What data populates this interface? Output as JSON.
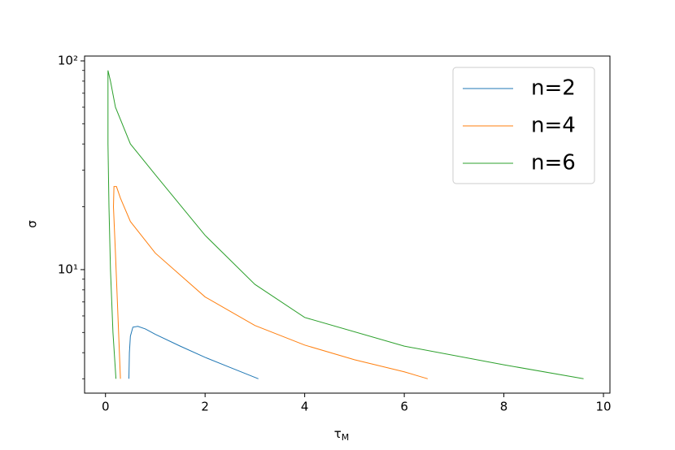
{
  "chart_data": {
    "type": "line",
    "xlabel": "τ",
    "xlabel_sub": "M",
    "ylabel": "σ",
    "xlim": [
      -0.42,
      10.13
    ],
    "xticks": [
      0,
      2,
      4,
      6,
      8,
      10
    ],
    "ylim": [
      2.56,
      105.5
    ],
    "ylog": true,
    "yticks": [
      {
        "value": 10,
        "label": "10¹"
      },
      {
        "value": 100,
        "label": "10²"
      }
    ],
    "yminorticks": [
      3,
      4,
      5,
      6,
      7,
      8,
      9,
      20,
      30,
      40,
      50,
      60,
      70,
      80,
      90
    ],
    "legend": "upper right",
    "series": [
      {
        "name": "n=2",
        "color": "#1f77b4",
        "x": [
          0.47,
          0.48,
          0.5,
          0.55,
          0.65,
          0.8,
          1.0,
          1.5,
          2.0,
          2.5,
          3.07
        ],
        "values": [
          3.0,
          4.0,
          4.8,
          5.3,
          5.35,
          5.2,
          4.9,
          4.3,
          3.8,
          3.4,
          3.0
        ]
      },
      {
        "name": "n=4",
        "color": "#ff7f0e",
        "x": [
          0.3,
          0.25,
          0.2,
          0.16,
          0.17,
          0.22,
          0.3,
          0.5,
          1.0,
          2.0,
          3.0,
          4.0,
          5.0,
          6.0,
          6.47
        ],
        "values": [
          3.0,
          6.0,
          12.0,
          20.0,
          25.0,
          25.0,
          22.0,
          17.0,
          12.0,
          7.4,
          5.4,
          4.35,
          3.7,
          3.24,
          3.0
        ]
      },
      {
        "name": "n=6",
        "color": "#2ca02c",
        "x": [
          0.21,
          0.15,
          0.1,
          0.07,
          0.05,
          0.05,
          0.1,
          0.2,
          0.5,
          1.0,
          2.0,
          3.0,
          4.0,
          6.0,
          8.0,
          9.6
        ],
        "values": [
          3.0,
          5.0,
          10.0,
          20.0,
          40.0,
          90.0,
          80.0,
          60.0,
          40.0,
          28.5,
          14.6,
          8.5,
          5.9,
          4.3,
          3.5,
          3.0
        ]
      }
    ]
  }
}
